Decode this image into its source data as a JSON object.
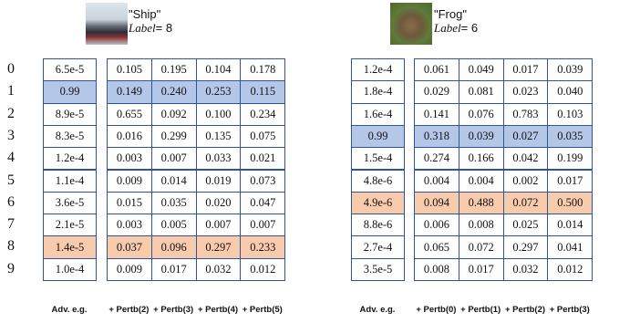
{
  "row_labels": [
    "0",
    "1",
    "2",
    "3",
    "4",
    "5",
    "6",
    "7",
    "8",
    "9"
  ],
  "panels": [
    {
      "name": "\"Ship\"",
      "label_word": "Label",
      "label_value": "= 8",
      "columns": [
        "Adv. e.g.",
        "+ Pertb(2)",
        "+ Pertb(3)",
        "+ Pertb(4)",
        "+ Pertb(5)"
      ],
      "rows": [
        [
          "6.5e-5",
          "0.105",
          "0.195",
          "0.104",
          "0.178"
        ],
        [
          "0.99",
          "0.149",
          "0.240",
          "0.253",
          "0.115"
        ],
        [
          "8.9e-5",
          "0.655",
          "0.092",
          "0.100",
          "0.234"
        ],
        [
          "8.3e-5",
          "0.016",
          "0.299",
          "0.135",
          "0.075"
        ],
        [
          "1.2e-4",
          "0.003",
          "0.007",
          "0.033",
          "0.021"
        ],
        [
          "1.1e-4",
          "0.009",
          "0.014",
          "0.019",
          "0.073"
        ],
        [
          "3.6e-5",
          "0.015",
          "0.035",
          "0.020",
          "0.047"
        ],
        [
          "2.1e-5",
          "0.003",
          "0.005",
          "0.007",
          "0.007"
        ],
        [
          "1.4e-5",
          "0.037",
          "0.096",
          "0.297",
          "0.233"
        ],
        [
          "1.0e-4",
          "0.009",
          "0.017",
          "0.032",
          "0.012"
        ]
      ],
      "highlight_rows": [
        {
          "row": 1,
          "color": "#b4c7e7"
        },
        {
          "row": 8,
          "color": "#f8cbad"
        }
      ]
    },
    {
      "name": "\"Frog\"",
      "label_word": "Label",
      "label_value": "= 6",
      "columns": [
        "Adv. e.g.",
        "+ Pertb(0)",
        "+ Pertb(1)",
        "+ Pertb(2)",
        "+ Pertb(3)"
      ],
      "rows": [
        [
          "1.2e-4",
          "0.061",
          "0.049",
          "0.017",
          "0.039"
        ],
        [
          "1.8e-4",
          "0.029",
          "0.081",
          "0.023",
          "0.040"
        ],
        [
          "1.6e-4",
          "0.141",
          "0.076",
          "0.783",
          "0.103"
        ],
        [
          "0.99",
          "0.318",
          "0.039",
          "0.027",
          "0.035"
        ],
        [
          "1.5e-4",
          "0.274",
          "0.166",
          "0.042",
          "0.199"
        ],
        [
          "4.8e-6",
          "0.004",
          "0.004",
          "0.002",
          "0.017"
        ],
        [
          "4.9e-6",
          "0.094",
          "0.488",
          "0.072",
          "0.500"
        ],
        [
          "8.8e-6",
          "0.006",
          "0.008",
          "0.025",
          "0.014"
        ],
        [
          "2.7e-4",
          "0.065",
          "0.072",
          "0.297",
          "0.041"
        ],
        [
          "3.5e-5",
          "0.008",
          "0.017",
          "0.032",
          "0.012"
        ]
      ],
      "highlight_rows": [
        {
          "row": 3,
          "color": "#b4c7e7"
        },
        {
          "row": 6,
          "color": "#f8cbad"
        }
      ]
    }
  ]
}
